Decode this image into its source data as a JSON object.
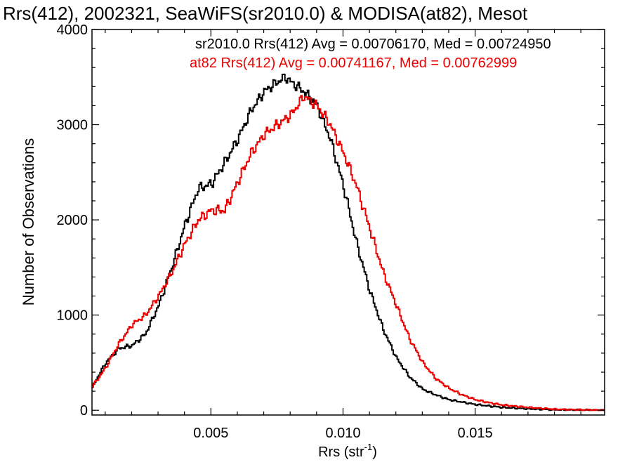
{
  "chart_data": {
    "type": "line",
    "title": "Rrs(412), 2002321, SeaWiFS(sr2010.0) & MODISA(at82), Mesot",
    "xlabel": "Rrs (str",
    "xlabel_sup": "-1",
    "xlabel_close": ")",
    "ylabel": "Number of Observations",
    "xlim": [
      0.0005,
      0.0199
    ],
    "ylim": [
      -50,
      4000
    ],
    "xticks": [
      {
        "value": 0.005,
        "label": "0.005"
      },
      {
        "value": 0.01,
        "label": "0.010"
      },
      {
        "value": 0.015,
        "label": "0.015"
      }
    ],
    "yticks": [
      {
        "value": 0,
        "label": "0"
      },
      {
        "value": 1000,
        "label": "1000"
      },
      {
        "value": 2000,
        "label": "2000"
      },
      {
        "value": 3000,
        "label": "3000"
      },
      {
        "value": 4000,
        "label": "4000"
      }
    ],
    "grid": false,
    "legend_position": "top-right",
    "annotations": [
      {
        "text": "sr2010.0 Rrs(412) Avg = 0.00706170, Med = 0.00724950",
        "color": "#000000"
      },
      {
        "text": "at82 Rrs(412) Avg = 0.00741167, Med = 0.00762999",
        "color": "#ee0000"
      }
    ],
    "series": [
      {
        "color": "#000000",
        "x": [
          0.0005,
          0.001,
          0.0015,
          0.002,
          0.0025,
          0.003,
          0.0035,
          0.004,
          0.0045,
          0.005,
          0.0055,
          0.006,
          0.0065,
          0.007,
          0.0075,
          0.0078,
          0.008,
          0.0085,
          0.009,
          0.0095,
          0.01,
          0.0105,
          0.011,
          0.0115,
          0.012,
          0.0125,
          0.013,
          0.0135,
          0.014,
          0.0145,
          0.015,
          0.0155,
          0.016,
          0.017,
          0.018,
          0.0199
        ],
        "y": [
          250,
          500,
          650,
          680,
          800,
          1100,
          1500,
          1950,
          2330,
          2380,
          2600,
          2850,
          3150,
          3350,
          3450,
          3500,
          3450,
          3350,
          3200,
          2850,
          2350,
          1750,
          1250,
          850,
          550,
          350,
          220,
          160,
          110,
          85,
          60,
          45,
          30,
          15,
          5,
          0
        ]
      },
      {
        "color": "#ee0000",
        "x": [
          0.0005,
          0.001,
          0.0015,
          0.002,
          0.0025,
          0.003,
          0.0035,
          0.004,
          0.0045,
          0.005,
          0.0055,
          0.006,
          0.0065,
          0.007,
          0.0075,
          0.008,
          0.0085,
          0.009,
          0.0095,
          0.01,
          0.0105,
          0.011,
          0.0115,
          0.012,
          0.0125,
          0.013,
          0.0135,
          0.014,
          0.0145,
          0.015,
          0.0155,
          0.016,
          0.017,
          0.018,
          0.0199
        ],
        "y": [
          250,
          450,
          700,
          900,
          1000,
          1200,
          1450,
          1750,
          2000,
          2100,
          2100,
          2400,
          2700,
          2900,
          3000,
          3100,
          3300,
          3200,
          3000,
          2700,
          2350,
          1900,
          1450,
          1100,
          750,
          500,
          330,
          230,
          160,
          110,
          80,
          55,
          30,
          10,
          0
        ]
      }
    ]
  }
}
